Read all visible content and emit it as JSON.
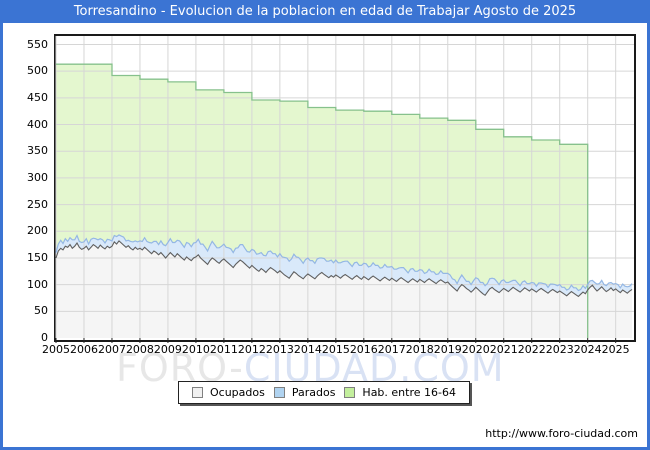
{
  "title_bar": {
    "text": "Torresandino - Evolucion de la poblacion en edad de Trabajar Agosto de 2025",
    "bg_color": "#3b74d3",
    "text_color": "#ffffff"
  },
  "watermark": {
    "part1": "FORO-",
    "part2": "CIUDAD.COM"
  },
  "footer": {
    "url": "http://www.foro-ciudad.com"
  },
  "legend": {
    "position": "bottom",
    "items": [
      {
        "label": "Ocupados",
        "swatch": "#f0f0f0",
        "swatch_border": "#808080"
      },
      {
        "label": "Parados",
        "swatch": "#b0d3f0",
        "swatch_border": "#808080"
      },
      {
        "label": "Hab. entre 16-64",
        "swatch": "#c3ef9d",
        "swatch_border": "#808080"
      }
    ]
  },
  "colors": {
    "frame_blue": "#3b74d3",
    "grid": "#d6d6d6",
    "plot_border": "#1a1a1a",
    "green_fill": "#e4f7cf",
    "green_line": "#86c18c",
    "blue_fill": "#d9e9fa",
    "blue_line": "#94b7e4",
    "ocupados_fill": "#f5f5f5",
    "ocupados_line": "#5f5f5f"
  },
  "chart_data": {
    "type": "area",
    "title": "Torresandino - Evolucion de la poblacion en edad de Trabajar Agosto de 2025",
    "grid": true,
    "legend_position": "bottom",
    "x_axis": {
      "start_year": 2005,
      "end_label": "Agosto 2025",
      "tick_labels": [
        "2005",
        "2006",
        "2007",
        "2008",
        "2009",
        "2010",
        "2011",
        "2012",
        "2013",
        "2014",
        "2015",
        "2016",
        "2017",
        "2018",
        "2019",
        "2020",
        "2021",
        "2022",
        "2023",
        "2024",
        "2025"
      ]
    },
    "y_axis": {
      "min": 0,
      "max": 550,
      "tick_step": 50
    },
    "months_total": 248,
    "series": [
      {
        "name": "Hab. entre 16-64",
        "type": "step_area_yearly",
        "first_year": 2005,
        "last_year": 2023,
        "values": [
          513,
          513,
          492,
          485,
          480,
          465,
          460,
          446,
          444,
          432,
          427,
          425,
          419,
          412,
          408,
          391,
          377,
          371,
          363
        ],
        "fill": "#e4f7cf",
        "stroke": "#86c18c"
      },
      {
        "name": "Ocupados",
        "type": "line_area_monthly",
        "fill": "#f5f5f5",
        "stroke": "#5f5f5f",
        "values_by_year": [
          [
            150,
            163,
            168,
            165,
            172,
            170,
            175,
            168,
            172,
            178,
            170,
            166
          ],
          [
            168,
            172,
            165,
            170,
            175,
            172,
            168,
            174,
            170,
            167,
            172,
            169
          ],
          [
            172,
            180,
            176,
            182,
            178,
            174,
            170,
            173,
            168,
            165,
            170,
            166
          ],
          [
            168,
            165,
            170,
            166,
            162,
            158,
            163,
            160,
            156,
            160,
            155,
            150
          ],
          [
            155,
            160,
            156,
            152,
            158,
            154,
            150,
            146,
            152,
            148,
            145,
            150
          ],
          [
            152,
            156,
            150,
            146,
            142,
            138,
            145,
            150,
            147,
            143,
            140,
            145
          ],
          [
            148,
            144,
            140,
            136,
            132,
            138,
            142,
            146,
            143,
            139,
            135,
            131
          ],
          [
            136,
            132,
            128,
            125,
            130,
            127,
            123,
            128,
            132,
            129,
            126,
            122
          ],
          [
            126,
            122,
            118,
            115,
            112,
            118,
            124,
            121,
            117,
            114,
            111,
            116
          ],
          [
            120,
            117,
            114,
            111,
            116,
            120,
            123,
            119,
            116,
            113,
            117,
            114
          ],
          [
            118,
            115,
            112,
            116,
            119,
            116,
            113,
            110,
            114,
            117,
            113,
            110
          ],
          [
            115,
            112,
            109,
            113,
            116,
            113,
            110,
            107,
            111,
            114,
            111,
            108
          ],
          [
            112,
            109,
            106,
            110,
            113,
            110,
            107,
            104,
            108,
            111,
            108,
            105
          ],
          [
            110,
            107,
            104,
            108,
            111,
            108,
            105,
            102,
            106,
            109,
            106,
            103
          ],
          [
            105,
            100,
            96,
            92,
            88,
            95,
            100,
            97,
            93,
            90,
            86,
            90
          ],
          [
            95,
            91,
            87,
            83,
            80,
            86,
            92,
            95,
            91,
            88,
            85,
            89
          ],
          [
            93,
            90,
            87,
            91,
            95,
            92,
            89,
            86,
            90,
            94,
            91,
            88
          ],
          [
            92,
            89,
            86,
            90,
            93,
            90,
            87,
            84,
            88,
            91,
            88,
            85
          ],
          [
            88,
            85,
            82,
            79,
            83,
            87,
            84,
            81,
            78,
            82,
            86,
            83
          ],
          [
            90,
            95,
            99,
            93,
            88,
            92,
            96,
            91,
            87,
            90,
            94,
            89
          ],
          [
            92,
            88,
            85,
            90,
            87,
            84,
            88,
            91
          ]
        ]
      },
      {
        "name": "Parados",
        "type": "stacked_band_monthly",
        "stacked_on": "Ocupados",
        "fill": "#d9e9fa",
        "stroke": "#94b7e4",
        "values_by_year": [
          [
            10,
            13,
            15,
            12,
            14,
            11,
            13,
            16,
            12,
            14,
            11,
            13
          ],
          [
            12,
            14,
            11,
            15,
            12,
            14,
            16,
            12,
            14,
            11,
            13,
            15
          ],
          [
            10,
            12,
            14,
            11,
            13,
            15,
            12,
            10,
            13,
            15,
            12,
            14
          ],
          [
            14,
            16,
            18,
            15,
            17,
            20,
            18,
            21,
            19,
            22,
            20,
            23
          ],
          [
            24,
            26,
            23,
            27,
            25,
            28,
            26,
            24,
            27,
            29,
            26,
            28
          ],
          [
            27,
            29,
            26,
            30,
            28,
            25,
            28,
            31,
            28,
            26,
            29,
            27
          ],
          [
            28,
            26,
            29,
            31,
            28,
            30,
            27,
            29,
            32,
            29,
            27,
            30
          ],
          [
            30,
            32,
            29,
            33,
            30,
            28,
            31,
            34,
            31,
            29,
            32,
            30
          ],
          [
            32,
            30,
            33,
            35,
            32,
            30,
            33,
            31,
            34,
            32,
            29,
            31
          ],
          [
            30,
            28,
            31,
            29,
            32,
            30,
            27,
            30,
            28,
            31,
            29,
            27
          ],
          [
            28,
            26,
            29,
            27,
            25,
            28,
            26,
            24,
            27,
            25,
            23,
            26
          ],
          [
            25,
            27,
            24,
            22,
            25,
            23,
            26,
            24,
            21,
            24,
            22,
            25
          ],
          [
            22,
            20,
            23,
            21,
            19,
            22,
            20,
            18,
            21,
            19,
            17,
            20
          ],
          [
            18,
            20,
            17,
            15,
            18,
            16,
            19,
            17,
            14,
            17,
            15,
            18
          ],
          [
            16,
            18,
            15,
            17,
            14,
            16,
            18,
            15,
            13,
            16,
            14,
            17
          ],
          [
            18,
            20,
            17,
            21,
            18,
            16,
            19,
            17,
            20,
            18,
            15,
            18
          ],
          [
            16,
            14,
            17,
            15,
            13,
            16,
            14,
            12,
            15,
            13,
            11,
            14
          ],
          [
            12,
            14,
            11,
            13,
            10,
            12,
            14,
            11,
            13,
            10,
            12,
            13
          ],
          [
            12,
            10,
            13,
            11,
            9,
            12,
            10,
            13,
            11,
            9,
            12,
            10
          ],
          [
            10,
            12,
            9,
            11,
            13,
            10,
            12,
            9,
            11,
            13,
            10,
            12
          ],
          [
            10,
            12,
            9,
            11,
            10,
            12,
            9,
            11
          ]
        ]
      }
    ]
  }
}
